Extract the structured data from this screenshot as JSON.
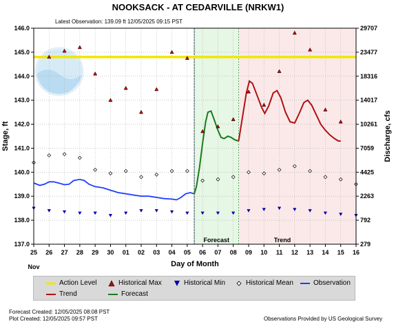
{
  "chart_data": {
    "type": "line",
    "title": "NOOKSACK - AT CEDARVILLE  (NRKW1)",
    "latest_observation": "Latest Observation:  139.09 ft 12/05/2025 09:15 PST",
    "xlabel": "Day of Month",
    "ylabel_left": "Stage, ft",
    "ylabel_right": "Discharge, cfs",
    "x_ticks": [
      "25",
      "26",
      "27",
      "28",
      "29",
      "30",
      "01",
      "02",
      "03",
      "04",
      "05",
      "06",
      "07",
      "08",
      "09",
      "10",
      "11",
      "12",
      "13",
      "14",
      "15",
      "16"
    ],
    "x_month_label": "Nov",
    "xlim": [
      0,
      21
    ],
    "ylim": [
      137.0,
      146.0
    ],
    "y_ticks": [
      "137.0",
      "138.0",
      "139.0",
      "140.0",
      "141.0",
      "142.0",
      "143.0",
      "144.0",
      "145.0",
      "146.0"
    ],
    "y_ticks_right": [
      {
        "label": "279",
        "stage": 137.0
      },
      {
        "label": "792",
        "stage": 138.0
      },
      {
        "label": "2263",
        "stage": 139.0
      },
      {
        "label": "4425",
        "stage": 140.0
      },
      {
        "label": "7059",
        "stage": 141.0
      },
      {
        "label": "10261",
        "stage": 142.0
      },
      {
        "label": "14017",
        "stage": 143.0
      },
      {
        "label": "18316",
        "stage": 144.0
      },
      {
        "label": "23477",
        "stage": 145.0
      },
      {
        "label": "29707",
        "stage": 146.0
      }
    ],
    "grid": true,
    "action_level": 144.8,
    "observation_end": 10.46,
    "forecast_zone": {
      "label": "Forecast",
      "start": 10.46,
      "end": 13.35
    },
    "trend_zone": {
      "label": "Trend",
      "start": 13.35,
      "end": 21
    },
    "series": [
      {
        "name": "Action Level",
        "color": "#f2e600",
        "kind": "line"
      },
      {
        "name": "Historical Max",
        "color": "#c00000",
        "kind": "triangle-up"
      },
      {
        "name": "Historical Min",
        "color": "#0000a8",
        "kind": "triangle-down"
      },
      {
        "name": "Historical Mean",
        "color": "#000000",
        "kind": "diamond"
      },
      {
        "name": "Observation",
        "color": "#1f3cff",
        "kind": "line"
      },
      {
        "name": "Trend",
        "color": "#b01010",
        "kind": "line"
      },
      {
        "name": "Forecast",
        "color": "#1a7a1a",
        "kind": "line"
      }
    ],
    "historical_max": [
      {
        "x": 1,
        "y": 144.8
      },
      {
        "x": 2,
        "y": 145.05
      },
      {
        "x": 3,
        "y": 145.2
      },
      {
        "x": 4,
        "y": 144.1
      },
      {
        "x": 5,
        "y": 143.0
      },
      {
        "x": 6,
        "y": 143.5
      },
      {
        "x": 7,
        "y": 142.5
      },
      {
        "x": 8,
        "y": 143.45
      },
      {
        "x": 9,
        "y": 145.0
      },
      {
        "x": 10,
        "y": 144.75
      },
      {
        "x": 11,
        "y": 141.7
      },
      {
        "x": 12,
        "y": 141.9
      },
      {
        "x": 13,
        "y": 142.2
      },
      {
        "x": 14,
        "y": 143.35
      },
      {
        "x": 15,
        "y": 142.8
      },
      {
        "x": 16,
        "y": 144.2
      },
      {
        "x": 17,
        "y": 145.8
      },
      {
        "x": 18,
        "y": 145.1
      },
      {
        "x": 19,
        "y": 142.6
      },
      {
        "x": 20,
        "y": 142.1
      }
    ],
    "historical_min": [
      {
        "x": 0,
        "y": 138.5
      },
      {
        "x": 1,
        "y": 138.4
      },
      {
        "x": 2,
        "y": 138.35
      },
      {
        "x": 3,
        "y": 138.3
      },
      {
        "x": 4,
        "y": 138.3
      },
      {
        "x": 5,
        "y": 138.2
      },
      {
        "x": 6,
        "y": 138.3
      },
      {
        "x": 7,
        "y": 138.4
      },
      {
        "x": 8,
        "y": 138.4
      },
      {
        "x": 9,
        "y": 138.35
      },
      {
        "x": 10,
        "y": 138.3
      },
      {
        "x": 11,
        "y": 138.3
      },
      {
        "x": 12,
        "y": 138.3
      },
      {
        "x": 13,
        "y": 138.3
      },
      {
        "x": 14,
        "y": 138.4
      },
      {
        "x": 15,
        "y": 138.45
      },
      {
        "x": 16,
        "y": 138.5
      },
      {
        "x": 17,
        "y": 138.45
      },
      {
        "x": 18,
        "y": 138.4
      },
      {
        "x": 19,
        "y": 138.3
      },
      {
        "x": 20,
        "y": 138.25
      },
      {
        "x": 21,
        "y": 138.2
      }
    ],
    "historical_mean": [
      {
        "x": 0,
        "y": 140.4
      },
      {
        "x": 1,
        "y": 140.7
      },
      {
        "x": 2,
        "y": 140.75
      },
      {
        "x": 3,
        "y": 140.6
      },
      {
        "x": 4,
        "y": 140.1
      },
      {
        "x": 5,
        "y": 139.95
      },
      {
        "x": 6,
        "y": 140.05
      },
      {
        "x": 7,
        "y": 139.8
      },
      {
        "x": 8,
        "y": 139.9
      },
      {
        "x": 9,
        "y": 140.05
      },
      {
        "x": 10,
        "y": 140.05
      },
      {
        "x": 11,
        "y": 139.65
      },
      {
        "x": 12,
        "y": 139.7
      },
      {
        "x": 13,
        "y": 139.8
      },
      {
        "x": 14,
        "y": 140.0
      },
      {
        "x": 15,
        "y": 139.95
      },
      {
        "x": 16,
        "y": 140.1
      },
      {
        "x": 17,
        "y": 140.25
      },
      {
        "x": 18,
        "y": 140.05
      },
      {
        "x": 19,
        "y": 139.8
      },
      {
        "x": 20,
        "y": 139.7
      },
      {
        "x": 21,
        "y": 139.5
      }
    ],
    "observation": [
      {
        "x": 0,
        "y": 139.55
      },
      {
        "x": 0.4,
        "y": 139.45
      },
      {
        "x": 0.7,
        "y": 139.5
      },
      {
        "x": 1.0,
        "y": 139.6
      },
      {
        "x": 1.3,
        "y": 139.6
      },
      {
        "x": 1.6,
        "y": 139.55
      },
      {
        "x": 2.0,
        "y": 139.48
      },
      {
        "x": 2.3,
        "y": 139.5
      },
      {
        "x": 2.6,
        "y": 139.65
      },
      {
        "x": 3.0,
        "y": 139.7
      },
      {
        "x": 3.3,
        "y": 139.65
      },
      {
        "x": 3.6,
        "y": 139.5
      },
      {
        "x": 4.0,
        "y": 139.4
      },
      {
        "x": 4.5,
        "y": 139.35
      },
      {
        "x": 5.0,
        "y": 139.25
      },
      {
        "x": 5.5,
        "y": 139.15
      },
      {
        "x": 6.0,
        "y": 139.1
      },
      {
        "x": 6.5,
        "y": 139.05
      },
      {
        "x": 7.0,
        "y": 139.0
      },
      {
        "x": 7.5,
        "y": 139.0
      },
      {
        "x": 8.0,
        "y": 138.95
      },
      {
        "x": 8.5,
        "y": 138.9
      },
      {
        "x": 9.0,
        "y": 138.88
      },
      {
        "x": 9.3,
        "y": 138.85
      },
      {
        "x": 9.6,
        "y": 138.95
      },
      {
        "x": 9.9,
        "y": 139.1
      },
      {
        "x": 10.2,
        "y": 139.15
      },
      {
        "x": 10.46,
        "y": 139.1
      }
    ],
    "forecast": [
      {
        "x": 10.46,
        "y": 139.1
      },
      {
        "x": 10.6,
        "y": 139.4
      },
      {
        "x": 10.8,
        "y": 140.2
      },
      {
        "x": 11.0,
        "y": 141.2
      },
      {
        "x": 11.2,
        "y": 142.1
      },
      {
        "x": 11.35,
        "y": 142.5
      },
      {
        "x": 11.55,
        "y": 142.55
      },
      {
        "x": 11.75,
        "y": 142.2
      },
      {
        "x": 12.0,
        "y": 141.75
      },
      {
        "x": 12.2,
        "y": 141.45
      },
      {
        "x": 12.4,
        "y": 141.4
      },
      {
        "x": 12.65,
        "y": 141.5
      },
      {
        "x": 12.85,
        "y": 141.45
      },
      {
        "x": 13.1,
        "y": 141.35
      },
      {
        "x": 13.35,
        "y": 141.3
      }
    ],
    "trend": [
      {
        "x": 13.35,
        "y": 141.3
      },
      {
        "x": 13.6,
        "y": 142.3
      },
      {
        "x": 13.85,
        "y": 143.3
      },
      {
        "x": 14.05,
        "y": 143.8
      },
      {
        "x": 14.25,
        "y": 143.7
      },
      {
        "x": 14.55,
        "y": 143.2
      },
      {
        "x": 14.85,
        "y": 142.7
      },
      {
        "x": 15.05,
        "y": 142.45
      },
      {
        "x": 15.3,
        "y": 142.75
      },
      {
        "x": 15.6,
        "y": 143.3
      },
      {
        "x": 15.85,
        "y": 143.4
      },
      {
        "x": 16.1,
        "y": 143.1
      },
      {
        "x": 16.4,
        "y": 142.5
      },
      {
        "x": 16.7,
        "y": 142.1
      },
      {
        "x": 17.0,
        "y": 142.05
      },
      {
        "x": 17.3,
        "y": 142.45
      },
      {
        "x": 17.6,
        "y": 142.9
      },
      {
        "x": 17.85,
        "y": 143.0
      },
      {
        "x": 18.1,
        "y": 142.8
      },
      {
        "x": 18.4,
        "y": 142.4
      },
      {
        "x": 18.7,
        "y": 142.0
      },
      {
        "x": 19.0,
        "y": 141.75
      },
      {
        "x": 19.3,
        "y": 141.55
      },
      {
        "x": 19.6,
        "y": 141.4
      },
      {
        "x": 19.85,
        "y": 141.3
      },
      {
        "x": 20.0,
        "y": 141.3
      }
    ]
  },
  "legend": {
    "action_level": "Action Level",
    "historical_max": "Historical Max",
    "historical_min": "Historical Min",
    "historical_mean": "Historical Mean",
    "observation": "Observation",
    "trend": "Trend",
    "forecast": "Forecast"
  },
  "footer": {
    "forecast_created": "Forecast Created: 12/05/2025 08:08 PST",
    "plot_created": "Plot Created: 12/05/2025 09:57 PST",
    "credit": "Observations Provided by US Geological Survey"
  }
}
